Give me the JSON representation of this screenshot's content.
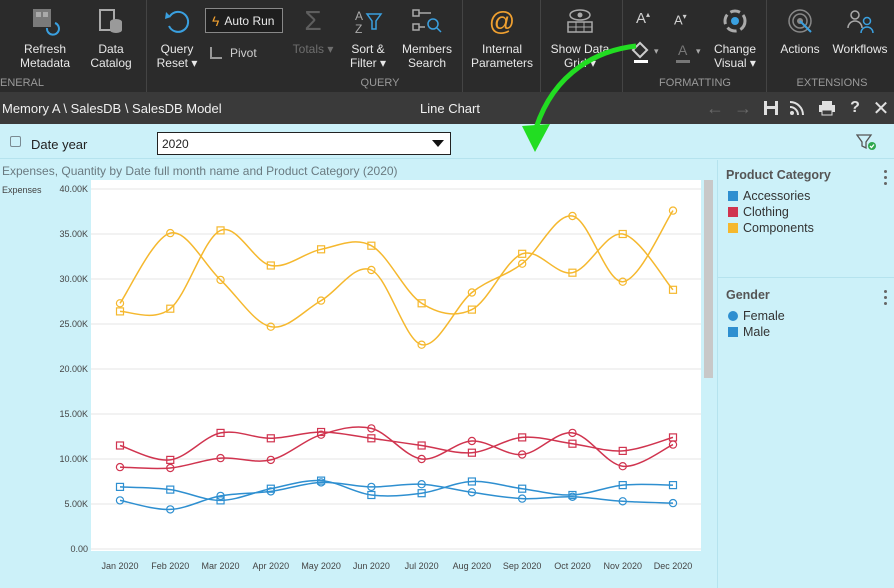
{
  "ribbon": {
    "groups": [
      {
        "label": "ENERAL"
      },
      {
        "label": "QUERY"
      },
      {
        "label": "FORMATTING"
      },
      {
        "label": "EXTENSIONS"
      }
    ],
    "refresh_metadata": "Refresh\nMetadata",
    "data_catalog": "Data\nCatalog",
    "query_reset": "Query\nReset ▾",
    "auto_run": "Auto Run",
    "pivot": "Pivot",
    "totals": "Totals ▾",
    "sort_filter": "Sort &\nFilter ▾",
    "members_search": "Members\nSearch",
    "internal_parameters": "Internal\nParameters",
    "show_data_grid": "Show Data\nGrid ▾",
    "change_visual": "Change\nVisual ▾",
    "actions": "Actions",
    "workflows": "Workflows"
  },
  "titlebar": {
    "breadcrumb": "Memory A \\ SalesDB \\ SalesDB Model",
    "title": "Line Chart"
  },
  "filter": {
    "label": "Date year",
    "selected": "2020"
  },
  "legend": {
    "category_title": "Product Category",
    "categories": [
      {
        "label": "Accessories",
        "color": "#2e8fd0"
      },
      {
        "label": "Clothing",
        "color": "#d0344f"
      },
      {
        "label": "Components",
        "color": "#f5b82e"
      }
    ],
    "gender_title": "Gender",
    "genders": [
      {
        "label": "Female",
        "shape": "circle"
      },
      {
        "label": "Male",
        "shape": "square"
      }
    ]
  },
  "chart_data": {
    "type": "line",
    "title": "Expenses, Quantity by Date full month name and Product Category (2020)",
    "ylabel": "Expenses",
    "ylim": [
      0,
      40000
    ],
    "yticks": [
      "0.00",
      "5.00K",
      "10.00K",
      "15.00K",
      "20.00K",
      "25.00K",
      "30.00K",
      "35.00K",
      "40.00K"
    ],
    "categories": [
      "Jan 2020",
      "Feb 2020",
      "Mar 2020",
      "Apr 2020",
      "May 2020",
      "Jun 2020",
      "Jul 2020",
      "Aug 2020",
      "Sep 2020",
      "Oct 2020",
      "Nov 2020",
      "Dec 2020"
    ],
    "series": [
      {
        "category": "Components",
        "gender": "Female",
        "color": "#f5b82e",
        "marker": "circle",
        "values": [
          27300,
          35100,
          29900,
          24700,
          27600,
          31000,
          22700,
          28500,
          31700,
          37000,
          29700,
          37600
        ]
      },
      {
        "category": "Components",
        "gender": "Male",
        "color": "#f5b82e",
        "marker": "square",
        "values": [
          26400,
          26700,
          35400,
          31500,
          33300,
          33700,
          27300,
          26600,
          32800,
          30700,
          35000,
          28800
        ]
      },
      {
        "category": "Clothing",
        "gender": "Male",
        "color": "#d0344f",
        "marker": "square",
        "values": [
          11500,
          9900,
          12900,
          12300,
          13000,
          12300,
          11500,
          10700,
          12400,
          11700,
          10900,
          12400
        ]
      },
      {
        "category": "Clothing",
        "gender": "Female",
        "color": "#d0344f",
        "marker": "circle",
        "values": [
          9100,
          9000,
          10100,
          9900,
          12700,
          13400,
          10000,
          12000,
          10500,
          12900,
          9200,
          11600
        ]
      },
      {
        "category": "Accessories",
        "gender": "Male",
        "color": "#2e8fd0",
        "marker": "square",
        "values": [
          6900,
          6600,
          5400,
          6700,
          7600,
          6000,
          6200,
          7500,
          6700,
          6000,
          7100,
          7100
        ]
      },
      {
        "category": "Accessories",
        "gender": "Female",
        "color": "#2e8fd0",
        "marker": "circle",
        "values": [
          5400,
          4400,
          5900,
          6400,
          7400,
          6900,
          7200,
          6300,
          5600,
          5800,
          5300,
          5100
        ]
      }
    ]
  }
}
